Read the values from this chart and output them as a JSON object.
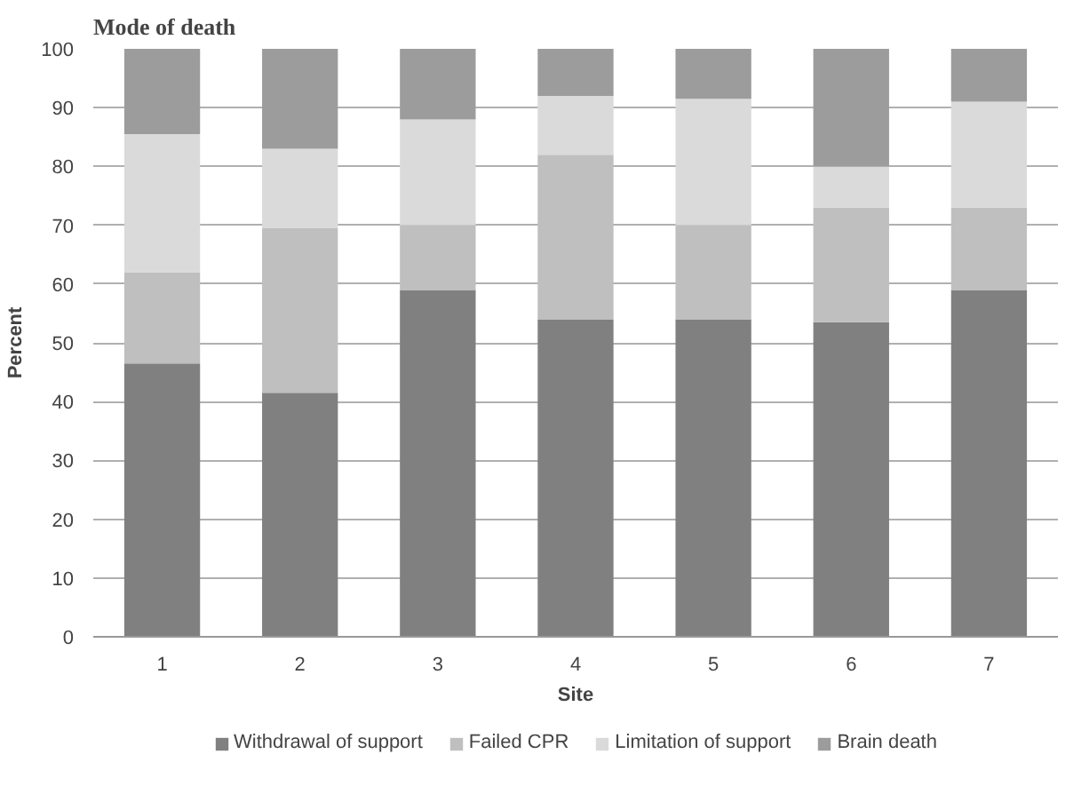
{
  "chart_data": {
    "type": "bar",
    "title": "Mode of death",
    "xlabel": "Site",
    "ylabel": "Percent",
    "categories": [
      "1",
      "2",
      "3",
      "4",
      "5",
      "6",
      "7"
    ],
    "stacked": true,
    "series": [
      {
        "name": "Withdrawal of support",
        "color": "#808080",
        "values": [
          46.5,
          41.5,
          59,
          54,
          54,
          53.5,
          59
        ]
      },
      {
        "name": "Failed CPR",
        "color": "#bfbfbf",
        "values": [
          15.5,
          28,
          11,
          28,
          16,
          19.5,
          14
        ]
      },
      {
        "name": "Limitation of support",
        "color": "#dadada",
        "values": [
          23.5,
          13.5,
          18,
          10,
          21.5,
          7,
          18
        ]
      },
      {
        "name": "Brain death",
        "color": "#9c9c9c",
        "values": [
          14.5,
          17,
          12,
          8,
          8.5,
          20,
          9
        ]
      }
    ],
    "ylim": [
      0,
      100
    ],
    "yticks": [
      0,
      10,
      20,
      30,
      40,
      50,
      60,
      70,
      80,
      90,
      100
    ],
    "grid": "y",
    "legend": "bottom"
  }
}
